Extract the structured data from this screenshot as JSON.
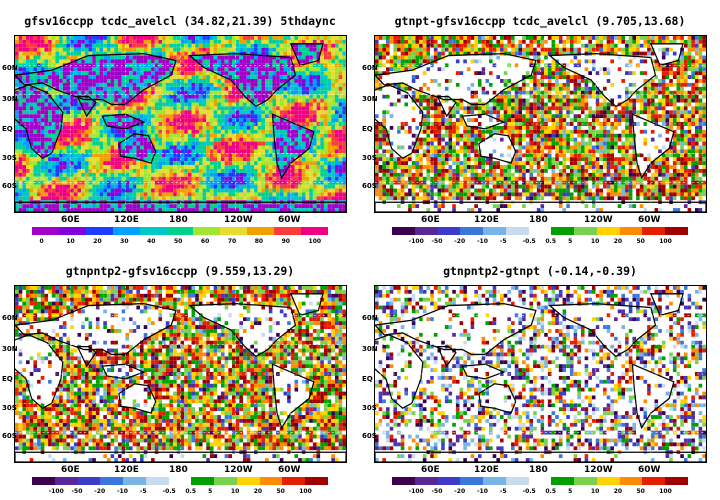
{
  "panels": [
    {
      "title": "gfsv16ccpp  tcdc_avelcl (34.82,21.39) 5thdaync",
      "variant": "absolute",
      "lat_labels": [
        "60N",
        "30N",
        "EQ",
        "30S",
        "60S"
      ],
      "lon_labels": [
        "60E",
        "120E",
        "180",
        "120W",
        "60W"
      ],
      "colorbar": {
        "labels": [
          "0",
          "10",
          "20",
          "30",
          "40",
          "50",
          "60",
          "70",
          "80",
          "90",
          "100"
        ],
        "colors": [
          "#a000c8",
          "#8200dc",
          "#1e3cff",
          "#00a0ff",
          "#00c8c8",
          "#00d28c",
          "#a0e632",
          "#e6dc32",
          "#f0a000",
          "#fa3c3c",
          "#f00082"
        ]
      }
    },
    {
      "title": "gtnpt-gfsv16ccpp  tcdc_avelcl (9.705,13.68)",
      "variant": "diff",
      "lat_labels": [
        "60N",
        "30N",
        "EQ",
        "30S",
        "60S"
      ],
      "lon_labels": [
        "60E",
        "120E",
        "180",
        "120W",
        "60W"
      ],
      "colorbar": {
        "labels": [
          "-100",
          "-50",
          "-20",
          "-10",
          "-5",
          "-0.5",
          "0.5",
          "5",
          "10",
          "20",
          "50",
          "100"
        ],
        "colors": [
          "#3c0050",
          "#5a2896",
          "#3c3cc8",
          "#3c78dc",
          "#78b4e6",
          "#c8dcf0",
          "#ffffff",
          "#00a000",
          "#78d250",
          "#ffd200",
          "#ff8c00",
          "#e61e00",
          "#a00000"
        ]
      }
    },
    {
      "title": "gtnpntp2-gfsv16ccpp  (9.559,13.29)",
      "variant": "diff",
      "lat_labels": [
        "60N",
        "30N",
        "EQ",
        "30S",
        "60S"
      ],
      "lon_labels": [
        "60E",
        "120E",
        "180",
        "120W",
        "60W"
      ],
      "colorbar": {
        "labels": [
          "-100",
          "-50",
          "-20",
          "-10",
          "-5",
          "-0.5",
          "0.5",
          "5",
          "10",
          "20",
          "50",
          "100"
        ],
        "colors": [
          "#3c0050",
          "#5a2896",
          "#3c3cc8",
          "#3c78dc",
          "#78b4e6",
          "#c8dcf0",
          "#ffffff",
          "#00a000",
          "#78d250",
          "#ffd200",
          "#ff8c00",
          "#e61e00",
          "#a00000"
        ]
      }
    },
    {
      "title": "gtnpntp2-gtnpt  (-0.14,-0.39)",
      "variant": "small",
      "lat_labels": [
        "60N",
        "30N",
        "EQ",
        "30S",
        "60S"
      ],
      "lon_labels": [
        "60E",
        "120E",
        "180",
        "120W",
        "60W"
      ],
      "colorbar": {
        "labels": [
          "-100",
          "-50",
          "-20",
          "-10",
          "-5",
          "-0.5",
          "0.5",
          "5",
          "10",
          "20",
          "50",
          "100"
        ],
        "colors": [
          "#3c0050",
          "#5a2896",
          "#3c3cc8",
          "#3c78dc",
          "#78b4e6",
          "#c8dcf0",
          "#ffffff",
          "#00a000",
          "#78d250",
          "#ffd200",
          "#ff8c00",
          "#e61e00",
          "#a00000"
        ]
      }
    }
  ]
}
